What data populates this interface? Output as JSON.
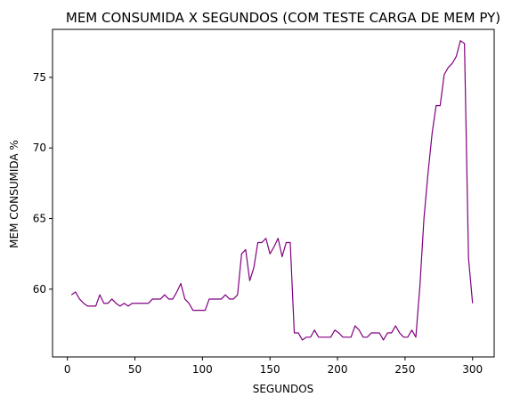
{
  "chart_data": {
    "type": "line",
    "title": "MEM CONSUMIDA X SEGUNDOS (COM TESTE CARGA DE MEM PY)",
    "xlabel": "SEGUNDOS",
    "ylabel": "MEM CONSUMIDA %",
    "xlim": [
      -11,
      316
    ],
    "ylim": [
      55.2,
      78.4
    ],
    "xticks": [
      0,
      50,
      100,
      150,
      200,
      250,
      300
    ],
    "yticks": [
      60,
      65,
      70,
      75
    ],
    "grid": false,
    "line_color": "#800080",
    "series": [
      {
        "x": [
          3,
          6,
          9,
          12,
          15,
          18,
          21,
          24,
          27,
          30,
          33,
          36,
          39,
          42,
          45,
          48,
          51,
          54,
          57,
          60,
          63,
          66,
          69,
          72,
          75,
          78,
          81,
          84,
          87,
          90,
          93,
          96,
          99,
          102,
          105,
          108,
          111,
          114,
          117,
          120,
          123,
          126,
          129,
          132,
          135,
          138,
          141,
          144,
          147,
          150,
          153,
          156,
          159,
          162,
          165,
          168,
          171,
          174,
          177,
          180,
          183,
          186,
          189,
          192,
          195,
          198,
          201,
          204,
          207,
          210,
          213,
          216,
          219,
          222,
          225,
          228,
          231,
          234,
          237,
          240,
          243,
          246,
          249,
          252,
          255,
          258,
          261,
          264,
          267,
          270,
          273,
          276,
          279,
          282,
          285,
          288,
          291,
          294,
          297,
          300
        ],
        "y": [
          59.6,
          59.8,
          59.3,
          59.0,
          58.8,
          58.8,
          58.8,
          59.6,
          59.0,
          59.0,
          59.3,
          59.0,
          58.8,
          59.0,
          58.8,
          59.0,
          59.0,
          59.0,
          59.0,
          59.0,
          59.3,
          59.3,
          59.3,
          59.6,
          59.3,
          59.3,
          59.8,
          60.4,
          59.3,
          59.0,
          58.5,
          58.5,
          58.5,
          58.5,
          59.3,
          59.3,
          59.3,
          59.3,
          59.6,
          59.3,
          59.3,
          59.6,
          62.5,
          62.8,
          60.6,
          61.5,
          63.3,
          63.3,
          63.6,
          62.5,
          63.0,
          63.6,
          62.3,
          63.3,
          63.3,
          56.9,
          56.9,
          56.4,
          56.6,
          56.6,
          57.1,
          56.6,
          56.6,
          56.6,
          56.6,
          57.1,
          56.9,
          56.6,
          56.6,
          56.6,
          57.4,
          57.1,
          56.6,
          56.6,
          56.9,
          56.9,
          56.9,
          56.4,
          56.9,
          56.9,
          57.4,
          56.9,
          56.6,
          56.6,
          57.1,
          56.6,
          60.2,
          65.0,
          68.2,
          71.0,
          73.0,
          73.0,
          75.2,
          75.7,
          76.0,
          76.5,
          77.6,
          77.4,
          62.2,
          59.0
        ]
      }
    ]
  }
}
